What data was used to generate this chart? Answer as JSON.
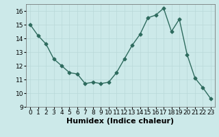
{
  "x": [
    0,
    1,
    2,
    3,
    4,
    5,
    6,
    7,
    8,
    9,
    10,
    11,
    12,
    13,
    14,
    15,
    16,
    17,
    18,
    19,
    20,
    21,
    22,
    23
  ],
  "y": [
    15.0,
    14.2,
    13.6,
    12.5,
    12.0,
    11.5,
    11.4,
    10.7,
    10.8,
    10.7,
    10.8,
    11.5,
    12.5,
    13.5,
    14.3,
    15.5,
    15.7,
    16.2,
    14.5,
    15.4,
    12.8,
    11.1,
    10.4,
    9.6
  ],
  "xlabel": "Humidex (Indice chaleur)",
  "ylim": [
    9,
    16.5
  ],
  "yticks": [
    9,
    10,
    11,
    12,
    13,
    14,
    15,
    16
  ],
  "xticks": [
    0,
    1,
    2,
    3,
    4,
    5,
    6,
    7,
    8,
    9,
    10,
    11,
    12,
    13,
    14,
    15,
    16,
    17,
    18,
    19,
    20,
    21,
    22,
    23
  ],
  "line_color": "#2e6b5e",
  "bg_color": "#cce9e9",
  "grid_color": "#b8d8d8",
  "marker": "D",
  "marker_size": 2.5,
  "linewidth": 1.0,
  "xlabel_fontsize": 8,
  "tick_fontsize": 6.5
}
